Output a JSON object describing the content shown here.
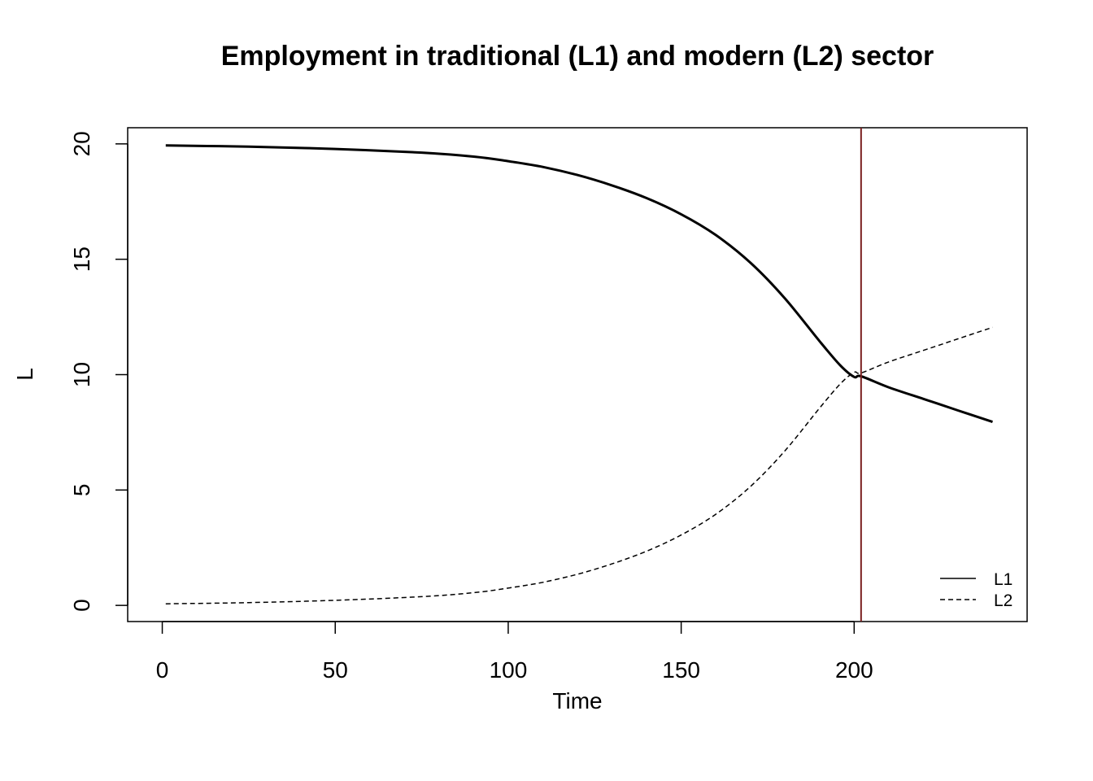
{
  "chart_data": {
    "type": "line",
    "title": "Employment in traditional (L1) and modern (L2) sector",
    "xlabel": "Time",
    "ylabel": "L",
    "xlim": [
      -10,
      250
    ],
    "ylim": [
      -0.7,
      20.7
    ],
    "xticks": [
      0,
      50,
      100,
      150,
      200
    ],
    "yticks": [
      0,
      5,
      10,
      15,
      20
    ],
    "grid": false,
    "legend_position": "bottom-right",
    "vline": {
      "x": 202,
      "color": "#7a1f1f"
    },
    "series": [
      {
        "name": "L1",
        "style": "solid",
        "color": "#000000",
        "x": [
          1,
          25,
          50,
          75,
          90,
          100,
          110,
          120,
          130,
          140,
          150,
          160,
          170,
          180,
          190,
          196,
          200,
          202,
          210,
          220,
          230,
          240
        ],
        "y": [
          19.93,
          19.88,
          19.78,
          19.62,
          19.45,
          19.25,
          19.0,
          18.65,
          18.2,
          17.65,
          16.95,
          16.05,
          14.85,
          13.3,
          11.45,
          10.4,
          9.9,
          9.93,
          9.45,
          8.95,
          8.45,
          7.95
        ]
      },
      {
        "name": "L2",
        "style": "dashed",
        "color": "#000000",
        "x": [
          1,
          25,
          50,
          75,
          90,
          100,
          110,
          120,
          130,
          140,
          150,
          160,
          170,
          180,
          190,
          196,
          200,
          202,
          210,
          220,
          230,
          240
        ],
        "y": [
          0.07,
          0.12,
          0.22,
          0.38,
          0.55,
          0.75,
          1.0,
          1.35,
          1.8,
          2.35,
          3.05,
          3.95,
          5.15,
          6.7,
          8.55,
          9.6,
          10.1,
          10.07,
          10.55,
          11.05,
          11.55,
          12.05
        ]
      }
    ]
  }
}
